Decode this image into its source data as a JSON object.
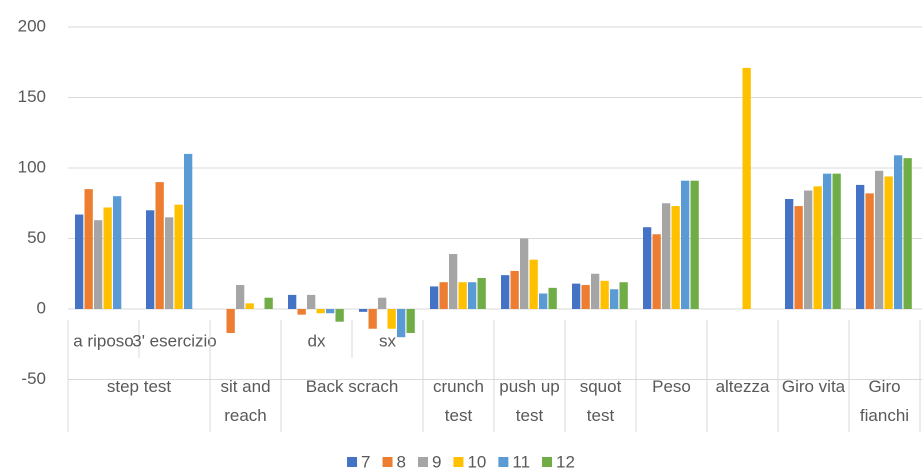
{
  "chart_data": {
    "type": "bar",
    "groups": [
      {
        "name": "step test",
        "categories": [
          "a riposo",
          "3' esercizio"
        ]
      },
      {
        "name": "sit and reach",
        "categories": [
          null
        ]
      },
      {
        "name": "Back scrach",
        "categories": [
          "dx",
          "sx"
        ]
      },
      {
        "name": "crunch test",
        "categories": [
          null
        ]
      },
      {
        "name": "push up test",
        "categories": [
          null
        ]
      },
      {
        "name": "squot test",
        "categories": [
          null
        ]
      },
      {
        "name": "Peso",
        "categories": [
          null
        ]
      },
      {
        "name": "altezza",
        "categories": [
          null
        ]
      },
      {
        "name": "Giro vita",
        "categories": [
          null
        ]
      },
      {
        "name": "Giro fianchi",
        "categories": [
          null
        ]
      }
    ],
    "series": [
      {
        "name": "7",
        "color": "#4472c4",
        "values": [
          67,
          70,
          null,
          10,
          -2,
          16,
          24,
          18,
          58,
          null,
          78,
          88
        ]
      },
      {
        "name": "8",
        "color": "#ed7d31",
        "values": [
          85,
          90,
          -17,
          -4,
          -14,
          19,
          27,
          17,
          53,
          null,
          73,
          82
        ]
      },
      {
        "name": "9",
        "color": "#a5a5a5",
        "values": [
          63,
          65,
          17,
          10,
          8,
          39,
          50,
          25,
          75,
          null,
          84,
          98
        ]
      },
      {
        "name": "10",
        "color": "#ffc000",
        "values": [
          72,
          74,
          4,
          -3,
          -14,
          19,
          35,
          20,
          73,
          171,
          87,
          94
        ]
      },
      {
        "name": "11",
        "color": "#5b9bd5",
        "values": [
          80,
          110,
          null,
          -3,
          -20,
          19,
          11,
          14,
          91,
          null,
          96,
          109
        ]
      },
      {
        "name": "12",
        "color": "#70ad47",
        "values": [
          null,
          null,
          8,
          -9,
          -17,
          22,
          15,
          19,
          91,
          null,
          96,
          107
        ]
      }
    ],
    "ylim": [
      -50,
      200
    ],
    "yticks": [
      -50,
      0,
      50,
      100,
      150,
      200
    ],
    "grid": true,
    "legend": "bottom"
  }
}
